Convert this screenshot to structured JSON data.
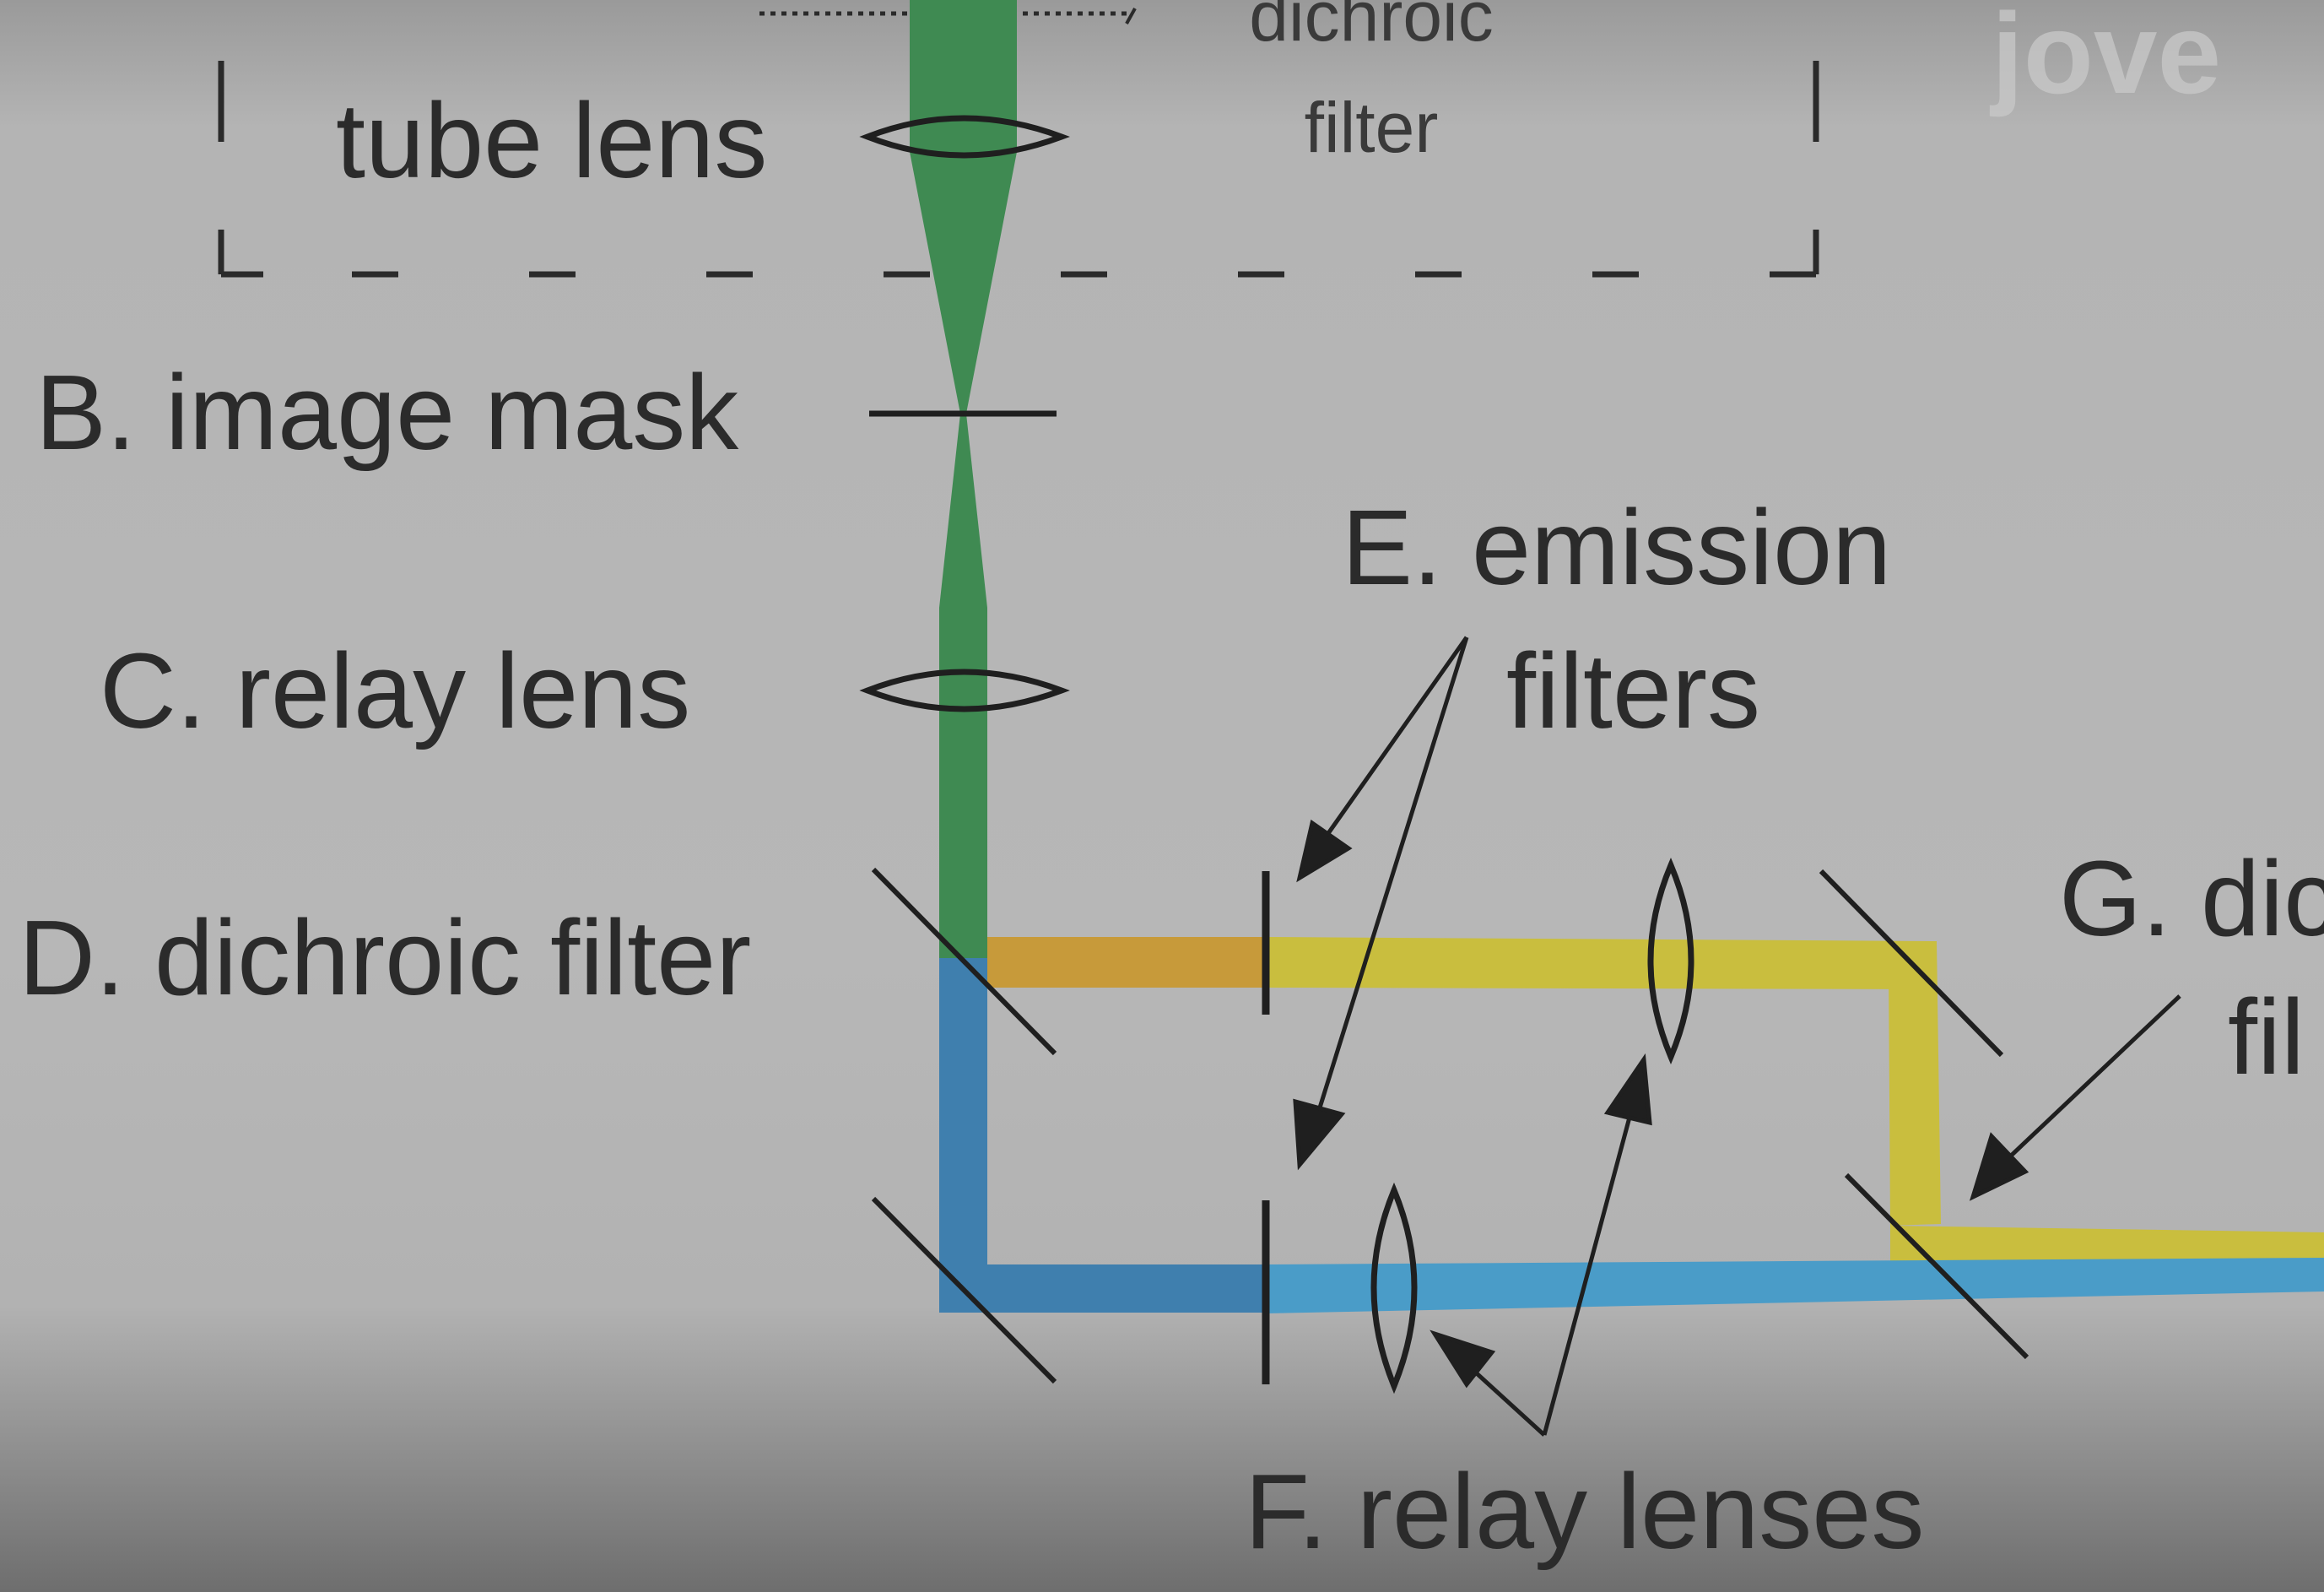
{
  "labels": {
    "dichroic_top": "dichroic",
    "filter_top": "filter",
    "tube_lens": "tube lens",
    "image_mask": "B. image mask",
    "relay_lens": "C. relay lens",
    "dichroic_filter": "D. dichroic filter",
    "emission_line1": "E. emission",
    "emission_line2": "filters",
    "relay_lenses": "F. relay lenses",
    "g_line1": "G. dic",
    "g_line2": "fil"
  },
  "logo": {
    "text": "jove"
  },
  "colors": {
    "green_beam": "#3f8a52",
    "orange_beam": "#c79a3a",
    "yellow_beam": "#c9be3e",
    "blue_beam": "#3f7fae",
    "light_blue_beam": "#4a9cc8",
    "line": "#1f1f1f"
  }
}
